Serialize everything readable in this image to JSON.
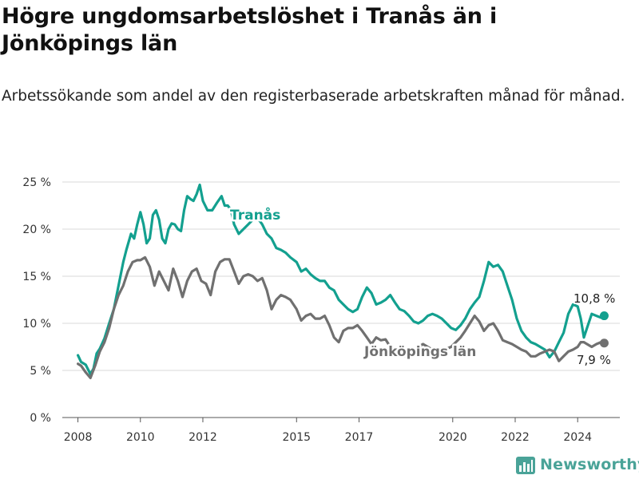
{
  "title": "Högre ungdomsarbetslöshet i Tranås än i Jönköpings län",
  "subtitle": "Arbetssökande som andel av den registerbaserade arbetskraften månad för månad.",
  "brand": {
    "name": "Newsworthy",
    "color": "#4aa398"
  },
  "chart_data": {
    "type": "line",
    "title": "Högre ungdomsarbetslöshet i Tranås än i Jönköpings län",
    "subtitle": "Arbetssökande som andel av den registerbaserade arbetskraften månad för månad.",
    "xlim": [
      2007.5,
      2025.35
    ],
    "ylim": [
      0,
      25
    ],
    "grid": true,
    "legend": "inline labels",
    "x_ticks": [
      2008,
      2010,
      2012,
      2015,
      2017,
      2020,
      2022,
      2024
    ],
    "x_tick_labels": [
      "2008",
      "2010",
      "2012",
      "2015",
      "2017",
      "2020",
      "2022",
      "2024"
    ],
    "y_ticks": [
      0,
      5,
      10,
      15,
      20,
      25
    ],
    "y_tick_labels": [
      "0 %",
      "5 %",
      "10 %",
      "15 %",
      "20 %",
      "25 %"
    ],
    "series": [
      {
        "name": "Tranås",
        "color": "#13a08f",
        "end_label": "10,8 %",
        "x": [
          2008.0,
          2008.1,
          2008.25,
          2008.4,
          2008.5,
          2008.6,
          2008.7,
          2008.85,
          2009.0,
          2009.15,
          2009.3,
          2009.45,
          2009.55,
          2009.7,
          2009.8,
          2009.9,
          2010.0,
          2010.1,
          2010.2,
          2010.3,
          2010.4,
          2010.5,
          2010.6,
          2010.7,
          2010.8,
          2010.9,
          2011.0,
          2011.1,
          2011.2,
          2011.3,
          2011.4,
          2011.5,
          2011.6,
          2011.7,
          2011.8,
          2011.9,
          2012.0,
          2012.15,
          2012.3,
          2012.45,
          2012.6,
          2012.7,
          2012.8,
          2012.9,
          2013.0,
          2013.15,
          2013.3,
          2013.45,
          2013.6,
          2013.75,
          2013.9,
          2014.05,
          2014.2,
          2014.35,
          2014.5,
          2014.65,
          2014.8,
          2015.0,
          2015.15,
          2015.3,
          2015.45,
          2015.6,
          2015.75,
          2015.9,
          2016.05,
          2016.2,
          2016.35,
          2016.5,
          2016.65,
          2016.8,
          2016.95,
          2017.1,
          2017.25,
          2017.4,
          2017.55,
          2017.7,
          2017.85,
          2018.0,
          2018.15,
          2018.3,
          2018.45,
          2018.6,
          2018.75,
          2018.9,
          2019.05,
          2019.2,
          2019.35,
          2019.5,
          2019.65,
          2019.8,
          2019.95,
          2020.1,
          2020.25,
          2020.4,
          2020.55,
          2020.7,
          2020.85,
          2021.0,
          2021.15,
          2021.3,
          2021.45,
          2021.6,
          2021.75,
          2021.9,
          2022.05,
          2022.2,
          2022.35,
          2022.5,
          2022.65,
          2022.8,
          2022.95,
          2023.1,
          2023.25,
          2023.4,
          2023.55,
          2023.7,
          2023.85,
          2024.0,
          2024.1,
          2024.2,
          2024.3,
          2024.45,
          2024.6,
          2024.75,
          2024.85
        ],
        "y": [
          6.6,
          5.9,
          5.6,
          4.6,
          5.2,
          6.8,
          7.3,
          8.4,
          10.0,
          11.5,
          14.0,
          16.5,
          17.8,
          19.5,
          19.0,
          20.5,
          21.8,
          20.5,
          18.5,
          19.0,
          21.5,
          22.0,
          21.0,
          19.0,
          18.5,
          20.0,
          20.6,
          20.5,
          20.0,
          19.8,
          22.0,
          23.5,
          23.2,
          23.0,
          23.7,
          24.7,
          23.0,
          22.0,
          22.0,
          22.8,
          23.5,
          22.5,
          22.5,
          22.0,
          20.5,
          19.5,
          20.0,
          20.5,
          21.0,
          21.2,
          20.5,
          19.5,
          19.0,
          18.0,
          17.8,
          17.5,
          17.0,
          16.5,
          15.5,
          15.8,
          15.2,
          14.8,
          14.5,
          14.5,
          13.8,
          13.5,
          12.5,
          12.0,
          11.5,
          11.2,
          11.5,
          12.8,
          13.8,
          13.2,
          12.0,
          12.2,
          12.5,
          13.0,
          12.2,
          11.5,
          11.3,
          10.8,
          10.2,
          10.0,
          10.3,
          10.8,
          11.0,
          10.8,
          10.5,
          10.0,
          9.5,
          9.3,
          9.8,
          10.5,
          11.5,
          12.2,
          12.8,
          14.5,
          16.5,
          16.0,
          16.2,
          15.5,
          14.0,
          12.5,
          10.5,
          9.2,
          8.5,
          8.0,
          7.8,
          7.5,
          7.2,
          6.4,
          7.0,
          8.0,
          9.0,
          11.0,
          12.0,
          11.8,
          10.5,
          8.5,
          9.5,
          11.0,
          10.8,
          10.6,
          10.8
        ]
      },
      {
        "name": "Jönköpings län",
        "color": "#707070",
        "end_label": "7,9 %",
        "x": [
          2008.0,
          2008.1,
          2008.25,
          2008.4,
          2008.55,
          2008.7,
          2008.85,
          2009.0,
          2009.15,
          2009.3,
          2009.45,
          2009.6,
          2009.75,
          2009.9,
          2010.0,
          2010.15,
          2010.3,
          2010.45,
          2010.6,
          2010.75,
          2010.9,
          2011.05,
          2011.2,
          2011.35,
          2011.5,
          2011.65,
          2011.8,
          2011.95,
          2012.1,
          2012.25,
          2012.4,
          2012.55,
          2012.7,
          2012.85,
          2013.0,
          2013.15,
          2013.3,
          2013.45,
          2013.6,
          2013.75,
          2013.9,
          2014.05,
          2014.2,
          2014.35,
          2014.5,
          2014.65,
          2014.8,
          2015.0,
          2015.15,
          2015.3,
          2015.45,
          2015.6,
          2015.75,
          2015.9,
          2016.05,
          2016.2,
          2016.35,
          2016.5,
          2016.65,
          2016.8,
          2016.95,
          2017.1,
          2017.25,
          2017.4,
          2017.55,
          2017.7,
          2017.85,
          2018.0,
          2018.15,
          2018.3,
          2018.45,
          2018.6,
          2018.75,
          2018.9,
          2019.05,
          2019.2,
          2019.35,
          2019.5,
          2019.65,
          2019.8,
          2019.95,
          2020.1,
          2020.25,
          2020.4,
          2020.55,
          2020.7,
          2020.85,
          2021.0,
          2021.15,
          2021.3,
          2021.45,
          2021.6,
          2021.75,
          2021.9,
          2022.05,
          2022.2,
          2022.35,
          2022.5,
          2022.65,
          2022.8,
          2022.95,
          2023.1,
          2023.25,
          2023.4,
          2023.55,
          2023.7,
          2023.85,
          2024.0,
          2024.1,
          2024.2,
          2024.3,
          2024.45,
          2024.6,
          2024.75,
          2024.85
        ],
        "y": [
          5.7,
          5.5,
          4.8,
          4.2,
          5.5,
          7.0,
          8.0,
          9.5,
          11.5,
          13.0,
          14.0,
          15.5,
          16.5,
          16.7,
          16.7,
          17.0,
          16.0,
          14.0,
          15.5,
          14.5,
          13.5,
          15.8,
          14.5,
          12.8,
          14.5,
          15.5,
          15.8,
          14.5,
          14.2,
          13.0,
          15.5,
          16.5,
          16.8,
          16.8,
          15.5,
          14.2,
          15.0,
          15.2,
          15.0,
          14.5,
          14.8,
          13.5,
          11.5,
          12.5,
          13.0,
          12.8,
          12.5,
          11.5,
          10.3,
          10.8,
          11.0,
          10.5,
          10.5,
          10.8,
          9.8,
          8.5,
          8.0,
          9.2,
          9.5,
          9.5,
          9.8,
          9.2,
          8.5,
          7.8,
          8.5,
          8.2,
          8.3,
          7.5,
          7.3,
          6.8,
          6.5,
          6.8,
          7.2,
          7.5,
          7.8,
          7.5,
          7.2,
          7.0,
          7.0,
          7.3,
          7.5,
          8.0,
          8.5,
          9.2,
          10.0,
          10.8,
          10.2,
          9.2,
          9.8,
          10.0,
          9.2,
          8.2,
          8.0,
          7.8,
          7.5,
          7.2,
          7.0,
          6.5,
          6.5,
          6.8,
          7.0,
          7.2,
          7.0,
          6.0,
          6.5,
          7.0,
          7.2,
          7.5,
          8.0,
          8.0,
          7.8,
          7.5,
          7.8,
          8.0,
          7.9
        ]
      }
    ]
  }
}
